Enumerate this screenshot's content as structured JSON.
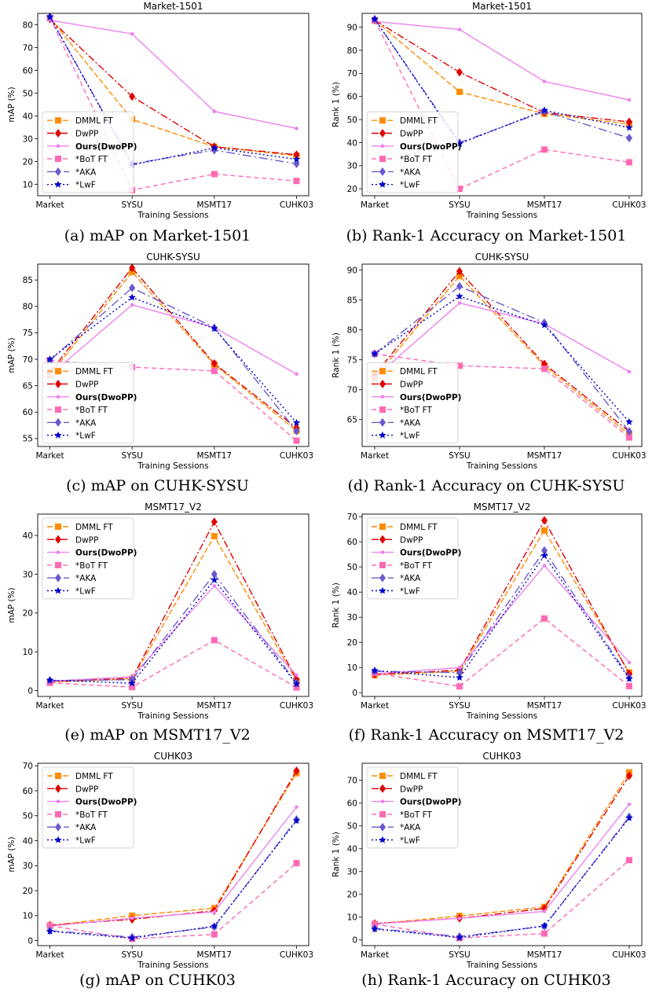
{
  "sessions": [
    "Market",
    "SYSU",
    "MSMT17",
    "CUHK03"
  ],
  "series_names": [
    "DMML FT",
    "DwPP",
    "Ours(DwoPP)",
    "*BoT FT",
    "*AKA",
    "*LwF"
  ],
  "series_colors": [
    "#ff8c00",
    "#e00000",
    "#ee82ee",
    "#ff69b4",
    "#6a5acd",
    "#0000cd"
  ],
  "chart_data": [
    {
      "type": "line",
      "title": "Market-1501",
      "xlabel": "Training Sessions",
      "ylabel": "mAP (%)",
      "caption": "(a) mAP on Market-1501",
      "categories": [
        "Market",
        "SYSU",
        "MSMT17",
        "CUHK03"
      ],
      "ylim": [
        5,
        85
      ],
      "yticks": [
        10,
        20,
        30,
        40,
        50,
        60,
        70,
        80
      ],
      "legend": "lower-left",
      "series": [
        {
          "name": "DMML FT",
          "values": [
            83.0,
            38.5,
            26.5,
            22.5
          ]
        },
        {
          "name": "DwPP",
          "values": [
            82.5,
            48.5,
            26.5,
            23.0
          ]
        },
        {
          "name": "Ours(DwoPP)",
          "values": [
            82.0,
            76.0,
            42.0,
            34.5
          ]
        },
        {
          "name": "*BoT FT",
          "values": [
            83.0,
            7.5,
            14.5,
            11.5
          ]
        },
        {
          "name": "*AKA",
          "values": [
            83.5,
            19.0,
            25.0,
            19.0
          ]
        },
        {
          "name": "*LwF",
          "values": [
            83.5,
            18.5,
            26.0,
            21.0
          ]
        }
      ]
    },
    {
      "type": "line",
      "title": "Market-1501",
      "xlabel": "Training Sessions",
      "ylabel": "Rank 1 (%)",
      "caption": "(b) Rank-1 Accuracy on Market-1501",
      "categories": [
        "Market",
        "SYSU",
        "MSMT17",
        "CUHK03"
      ],
      "ylim": [
        17,
        96
      ],
      "yticks": [
        20,
        30,
        40,
        50,
        60,
        70,
        80,
        90
      ],
      "legend": "lower-left",
      "series": [
        {
          "name": "DMML FT",
          "values": [
            93.0,
            62.0,
            52.5,
            48.0
          ]
        },
        {
          "name": "DwPP",
          "values": [
            93.0,
            70.5,
            53.0,
            49.0
          ]
        },
        {
          "name": "Ours(DwoPP)",
          "values": [
            92.5,
            89.0,
            66.5,
            58.5
          ]
        },
        {
          "name": "*BoT FT",
          "values": [
            93.0,
            20.0,
            37.0,
            31.5
          ]
        },
        {
          "name": "*AKA",
          "values": [
            93.5,
            40.0,
            53.5,
            42.0
          ]
        },
        {
          "name": "*LwF",
          "values": [
            93.5,
            39.5,
            54.0,
            46.5
          ]
        }
      ]
    },
    {
      "type": "line",
      "title": "CUHK-SYSU",
      "xlabel": "Training Sessions",
      "ylabel": "mAP (%)",
      "caption": "(c) mAP on CUHK-SYSU",
      "categories": [
        "Market",
        "SYSU",
        "MSMT17",
        "CUHK03"
      ],
      "ylim": [
        53.5,
        88
      ],
      "yticks": [
        55,
        60,
        65,
        70,
        75,
        80,
        85
      ],
      "legend": "lower-left",
      "series": [
        {
          "name": "DMML FT",
          "values": [
            67.0,
            86.5,
            69.0,
            56.5
          ]
        },
        {
          "name": "DwPP",
          "values": [
            67.5,
            87.3,
            69.2,
            57.0
          ]
        },
        {
          "name": "Ours(DwoPP)",
          "values": [
            67.0,
            80.3,
            76.0,
            67.2
          ]
        },
        {
          "name": "*BoT FT",
          "values": [
            69.8,
            68.5,
            67.8,
            54.6
          ]
        },
        {
          "name": "*AKA",
          "values": [
            69.8,
            83.5,
            76.0,
            56.4
          ]
        },
        {
          "name": "*LwF",
          "values": [
            70.0,
            81.7,
            75.8,
            58.0
          ]
        }
      ]
    },
    {
      "type": "line",
      "title": "CUHK-SYSU",
      "xlabel": "Training Sessions",
      "ylabel": "Rank 1 (%)",
      "caption": "(d) Rank-1 Accuracy on CUHK-SYSU",
      "categories": [
        "Market",
        "SYSU",
        "MSMT17",
        "CUHK03"
      ],
      "ylim": [
        60.5,
        91
      ],
      "yticks": [
        65,
        70,
        75,
        80,
        85,
        90
      ],
      "legend": "lower-left",
      "series": [
        {
          "name": "DMML FT",
          "values": [
            72.0,
            89.0,
            74.0,
            62.5
          ]
        },
        {
          "name": "DwPP",
          "values": [
            72.5,
            89.8,
            74.3,
            63.0
          ]
        },
        {
          "name": "Ours(DwoPP)",
          "values": [
            72.0,
            84.5,
            81.0,
            73.0
          ]
        },
        {
          "name": "*BoT FT",
          "values": [
            76.0,
            74.0,
            73.5,
            62.0
          ]
        },
        {
          "name": "*AKA",
          "values": [
            76.0,
            87.3,
            81.2,
            63.0
          ]
        },
        {
          "name": "*LwF",
          "values": [
            76.0,
            85.6,
            80.8,
            64.6
          ]
        }
      ]
    },
    {
      "type": "line",
      "title": "MSMT17_V2",
      "xlabel": "Training Sessions",
      "ylabel": "mAP (%)",
      "caption": "(e) mAP on MSMT17_V2",
      "categories": [
        "Market",
        "SYSU",
        "MSMT17",
        "CUHK03"
      ],
      "ylim": [
        -1.5,
        45.5
      ],
      "yticks": [
        0,
        10,
        20,
        30,
        40
      ],
      "legend": "upper-left",
      "series": [
        {
          "name": "DMML FT",
          "values": [
            2.2,
            3.0,
            39.8,
            2.5
          ]
        },
        {
          "name": "DwPP",
          "values": [
            2.3,
            3.2,
            43.5,
            2.8
          ]
        },
        {
          "name": "Ours(DwoPP)",
          "values": [
            2.4,
            3.6,
            27.0,
            4.0
          ]
        },
        {
          "name": "*BoT FT",
          "values": [
            2.0,
            0.9,
            13.0,
            0.8
          ]
        },
        {
          "name": "*AKA",
          "values": [
            2.6,
            2.8,
            30.0,
            2.0
          ]
        },
        {
          "name": "*LwF",
          "values": [
            2.7,
            1.9,
            28.5,
            1.7
          ]
        }
      ]
    },
    {
      "type": "line",
      "title": "MSMT17_V2",
      "xlabel": "Training Sessions",
      "ylabel": "Rank 1 (%)",
      "caption": "(f) Rank-1 Accuracy on MSMT17_V2",
      "categories": [
        "Market",
        "SYSU",
        "MSMT17",
        "CUHK03"
      ],
      "ylim": [
        -1.5,
        71
      ],
      "yticks": [
        0,
        10,
        20,
        30,
        40,
        50,
        60,
        70
      ],
      "legend": "upper-left",
      "series": [
        {
          "name": "DMML FT",
          "values": [
            7.0,
            8.5,
            64.5,
            8.0
          ]
        },
        {
          "name": "DwPP",
          "values": [
            7.2,
            9.0,
            68.5,
            7.5
          ]
        },
        {
          "name": "Ours(DwoPP)",
          "values": [
            7.5,
            10.0,
            50.5,
            12.0
          ]
        },
        {
          "name": "*BoT FT",
          "values": [
            7.8,
            2.5,
            29.5,
            2.6
          ]
        },
        {
          "name": "*AKA",
          "values": [
            8.5,
            8.0,
            56.5,
            6.0
          ]
        },
        {
          "name": "*LwF",
          "values": [
            8.8,
            6.0,
            54.5,
            5.5
          ]
        }
      ]
    },
    {
      "type": "line",
      "title": "CUHK03",
      "xlabel": "Training Sessions",
      "ylabel": "mAP (%)",
      "caption": "(g) mAP on CUHK03",
      "categories": [
        "Market",
        "SYSU",
        "MSMT17",
        "CUHK03"
      ],
      "ylim": [
        -2,
        71
      ],
      "yticks": [
        0,
        10,
        20,
        30,
        40,
        50,
        60,
        70
      ],
      "legend": "upper-left",
      "series": [
        {
          "name": "DMML FT",
          "values": [
            6.0,
            10.0,
            13.0,
            67.0
          ]
        },
        {
          "name": "DwPP",
          "values": [
            6.2,
            8.5,
            12.0,
            68.0
          ]
        },
        {
          "name": "Ours(DwoPP)",
          "values": [
            5.8,
            9.0,
            11.5,
            53.5
          ]
        },
        {
          "name": "*BoT FT",
          "values": [
            6.0,
            0.7,
            2.5,
            31.0
          ]
        },
        {
          "name": "*AKA",
          "values": [
            4.0,
            1.4,
            5.5,
            48.5
          ]
        },
        {
          "name": "*LwF",
          "values": [
            3.7,
            1.0,
            5.8,
            48.0
          ]
        }
      ]
    },
    {
      "type": "line",
      "title": "CUHK03",
      "xlabel": "Training Sessions",
      "ylabel": "Rank 1 (%)",
      "caption": "(h) Rank-1 Accuracy on CUHK03",
      "categories": [
        "Market",
        "SYSU",
        "MSMT17",
        "CUHK03"
      ],
      "ylim": [
        -2.5,
        77.5
      ],
      "yticks": [
        0,
        10,
        20,
        30,
        40,
        50,
        60,
        70
      ],
      "legend": "upper-left",
      "series": [
        {
          "name": "DMML FT",
          "values": [
            7.0,
            10.5,
            14.5,
            73.5
          ]
        },
        {
          "name": "DwPP",
          "values": [
            7.2,
            9.5,
            13.8,
            72.0
          ]
        },
        {
          "name": "Ours(DwoPP)",
          "values": [
            7.0,
            9.5,
            12.5,
            59.5
          ]
        },
        {
          "name": "*BoT FT",
          "values": [
            7.0,
            0.8,
            2.8,
            35.0
          ]
        },
        {
          "name": "*AKA",
          "values": [
            5.0,
            1.5,
            6.0,
            54.0
          ]
        },
        {
          "name": "*LwF",
          "values": [
            4.8,
            1.0,
            6.2,
            53.5
          ]
        }
      ]
    }
  ]
}
